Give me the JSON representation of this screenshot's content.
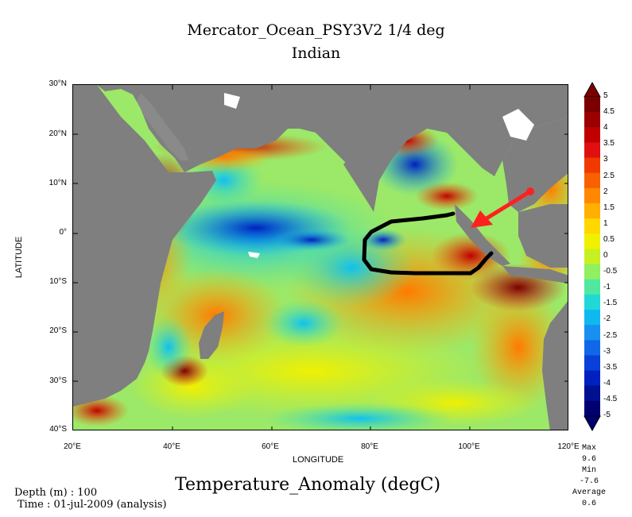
{
  "header": {
    "title": "Mercator_Ocean_PSY3V2 1/4 deg",
    "region": "Indian"
  },
  "axes": {
    "ylabel": "LATITUDE",
    "xlabel": "LONGITUDE",
    "lat_ticks": [
      "30°N",
      "20°N",
      "10°N",
      "0°",
      "10°S",
      "20°S",
      "30°S",
      "40°S"
    ],
    "lon_ticks": [
      "20°E",
      "40°E",
      "60°E",
      "80°E",
      "100°E",
      "120°E"
    ]
  },
  "colorbar": {
    "labels": [
      "5",
      "4.5",
      "4",
      "3.5",
      "3",
      "2.5",
      "2",
      "1.5",
      "1",
      "0.5",
      "0",
      "-0.5",
      "-1",
      "-1.5",
      "-2",
      "-2.5",
      "-3",
      "-3.5",
      "-4",
      "-4.5",
      "-5"
    ],
    "colors": [
      "#7a0000",
      "#9a0000",
      "#c00000",
      "#e01010",
      "#f03a00",
      "#f86000",
      "#ff8800",
      "#ffb000",
      "#ffd800",
      "#f0f000",
      "#c8f020",
      "#90f060",
      "#50e8a0",
      "#20d8d8",
      "#10b8f0",
      "#1890f0",
      "#1068e8",
      "#0840d8",
      "#0020c0",
      "#001090",
      "#000070"
    ]
  },
  "stats": {
    "max_label": "Max",
    "max": "9.6",
    "min_label": "Min",
    "min": "-7.6",
    "avg_label": "Average",
    "avg": "0.6"
  },
  "footer": {
    "variable": "Temperature_Anomaly (degC)",
    "depth": "Depth (m) : 100",
    "time": "Time : 01-jul-2009 (analysis)"
  },
  "overlay": {
    "arrow_color": "#ff2020",
    "loop_color": "#000000",
    "land_color": "#7f7f7f"
  }
}
